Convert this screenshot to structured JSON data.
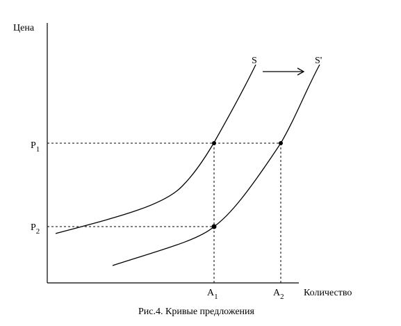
{
  "diagram": {
    "y_axis_label": "Цена",
    "x_axis_label": "Количество",
    "supply_label": "S",
    "shifted_supply_label": "S'",
    "price_1": "P",
    "price_1_sub": "1",
    "price_2": "P",
    "price_2_sub": "2",
    "qty_1": "A",
    "qty_1_sub": "1",
    "qty_2": "A",
    "qty_2_sub": "2",
    "caption": "Рис.4. Кривые предложения"
  }
}
